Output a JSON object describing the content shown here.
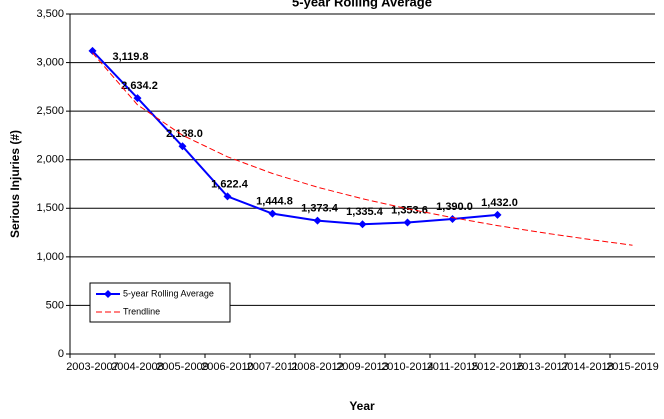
{
  "chart_data": {
    "type": "line",
    "title": "5-year Rolling Average",
    "y_label": "Serious Injuries (#)",
    "x_label": "Year",
    "categories": [
      "2003-2007",
      "2004-2008",
      "2005-2009",
      "2006-2010",
      "2007-2011",
      "2008-2012",
      "2009-2013",
      "2010-2014",
      "2011-2015",
      "2012-2016",
      "2013-2017",
      "2014-2018",
      "2015-2019"
    ],
    "series": [
      {
        "name": "5-year Rolling Average",
        "color": "#0000ff",
        "values": [
          3119.8,
          2634.2,
          2138.0,
          1622.4,
          1444.8,
          1373.4,
          1335.4,
          1353.6,
          1390.0,
          1432.0,
          null,
          null,
          null
        ],
        "value_labels": [
          "3,119.8",
          "2,634.2",
          "2,138.0",
          "1,622.4",
          "1,444.8",
          "1,373.4",
          "1,335.4",
          "1,353.6",
          "1,390.0",
          "1,432.0",
          null,
          null,
          null
        ]
      },
      {
        "name": "Trendline",
        "color": "#ff0000",
        "dashed": true,
        "values": [
          3100,
          2565,
          2252,
          2030,
          1858,
          1717,
          1598,
          1495,
          1404,
          1322,
          1249,
          1182,
          1120
        ]
      }
    ],
    "ylim": [
      0,
      3500
    ],
    "yticks": [
      0,
      500,
      {
        "value": 1000,
        "label": "1,000"
      },
      {
        "value": 1500,
        "label": "1,500"
      },
      {
        "value": 2000,
        "label": "2,000"
      },
      {
        "value": 2500,
        "label": "2,500"
      },
      {
        "value": 3000,
        "label": "3,000"
      },
      {
        "value": 3500,
        "label": "3,500"
      }
    ],
    "grid": true,
    "legend": "lower left"
  }
}
